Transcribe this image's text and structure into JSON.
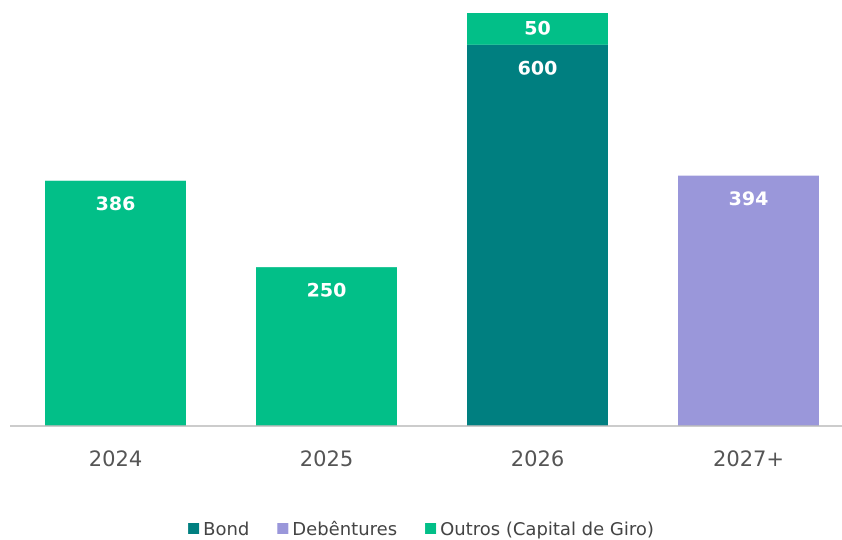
{
  "chart_data": {
    "type": "stacked_bar",
    "categories": [
      "2024",
      "2025",
      "2026",
      "2027+"
    ],
    "series": [
      {
        "name": "Bond",
        "color": "#007f80",
        "values": [
          null,
          null,
          600,
          null
        ]
      },
      {
        "name": "Debêntures",
        "color": "#9a97da",
        "values": [
          null,
          null,
          null,
          394
        ]
      },
      {
        "name": "Outros (Capital de Giro)",
        "color": "#02bf88",
        "values": [
          386,
          250,
          50,
          null
        ]
      }
    ],
    "ylim": [
      0,
      650
    ],
    "legend": "bottom"
  }
}
